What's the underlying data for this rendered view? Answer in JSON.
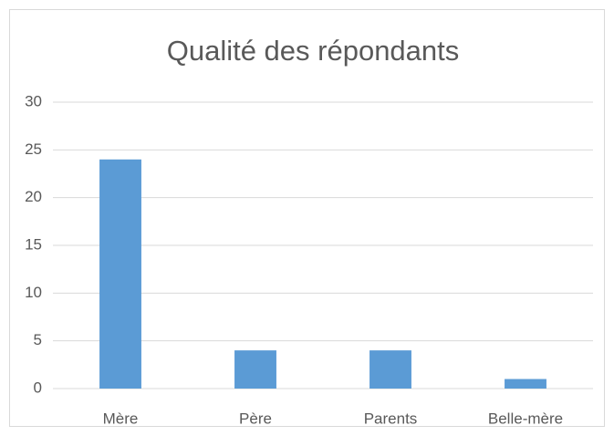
{
  "chart_data": {
    "type": "bar",
    "title": "Qualité des répondants",
    "categories": [
      "Mère",
      "Père",
      "Parents",
      "Belle-mère"
    ],
    "values": [
      24,
      4,
      4,
      1
    ],
    "color": "#5b9bd5",
    "ylim": [
      0,
      30
    ],
    "yticks": [
      0,
      5,
      10,
      15,
      20,
      25,
      30
    ],
    "grid": true
  }
}
